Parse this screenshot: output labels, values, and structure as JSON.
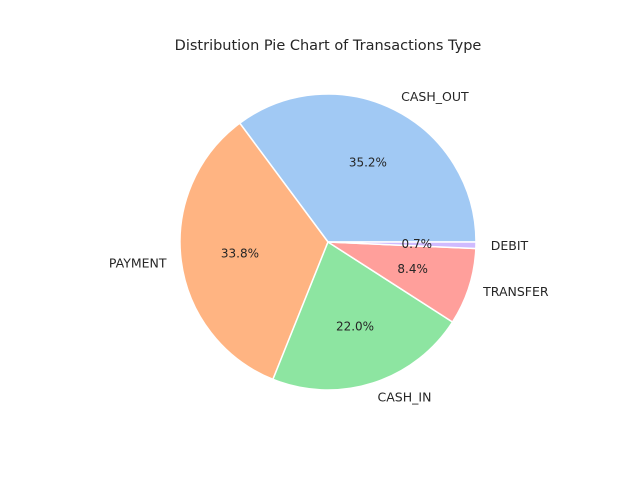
{
  "chart_data": {
    "type": "pie",
    "title": "Distribution Pie Chart of Transactions Type",
    "start_angle_deg": 0,
    "direction": "counterclockwise",
    "slices": [
      {
        "label": "CASH_OUT",
        "value": 35.2,
        "pct_label": "35.2%",
        "color": "#a1c9f4"
      },
      {
        "label": "PAYMENT",
        "value": 33.8,
        "pct_label": "33.8%",
        "color": "#ffb482"
      },
      {
        "label": "CASH_IN",
        "value": 22.0,
        "pct_label": "22.0%",
        "color": "#8de5a1"
      },
      {
        "label": "TRANSFER",
        "value": 8.4,
        "pct_label": "8.4%",
        "color": "#ff9f9b"
      },
      {
        "label": "DEBIT",
        "value": 0.7,
        "pct_label": "0.7%",
        "color": "#d0bbff"
      }
    ]
  }
}
